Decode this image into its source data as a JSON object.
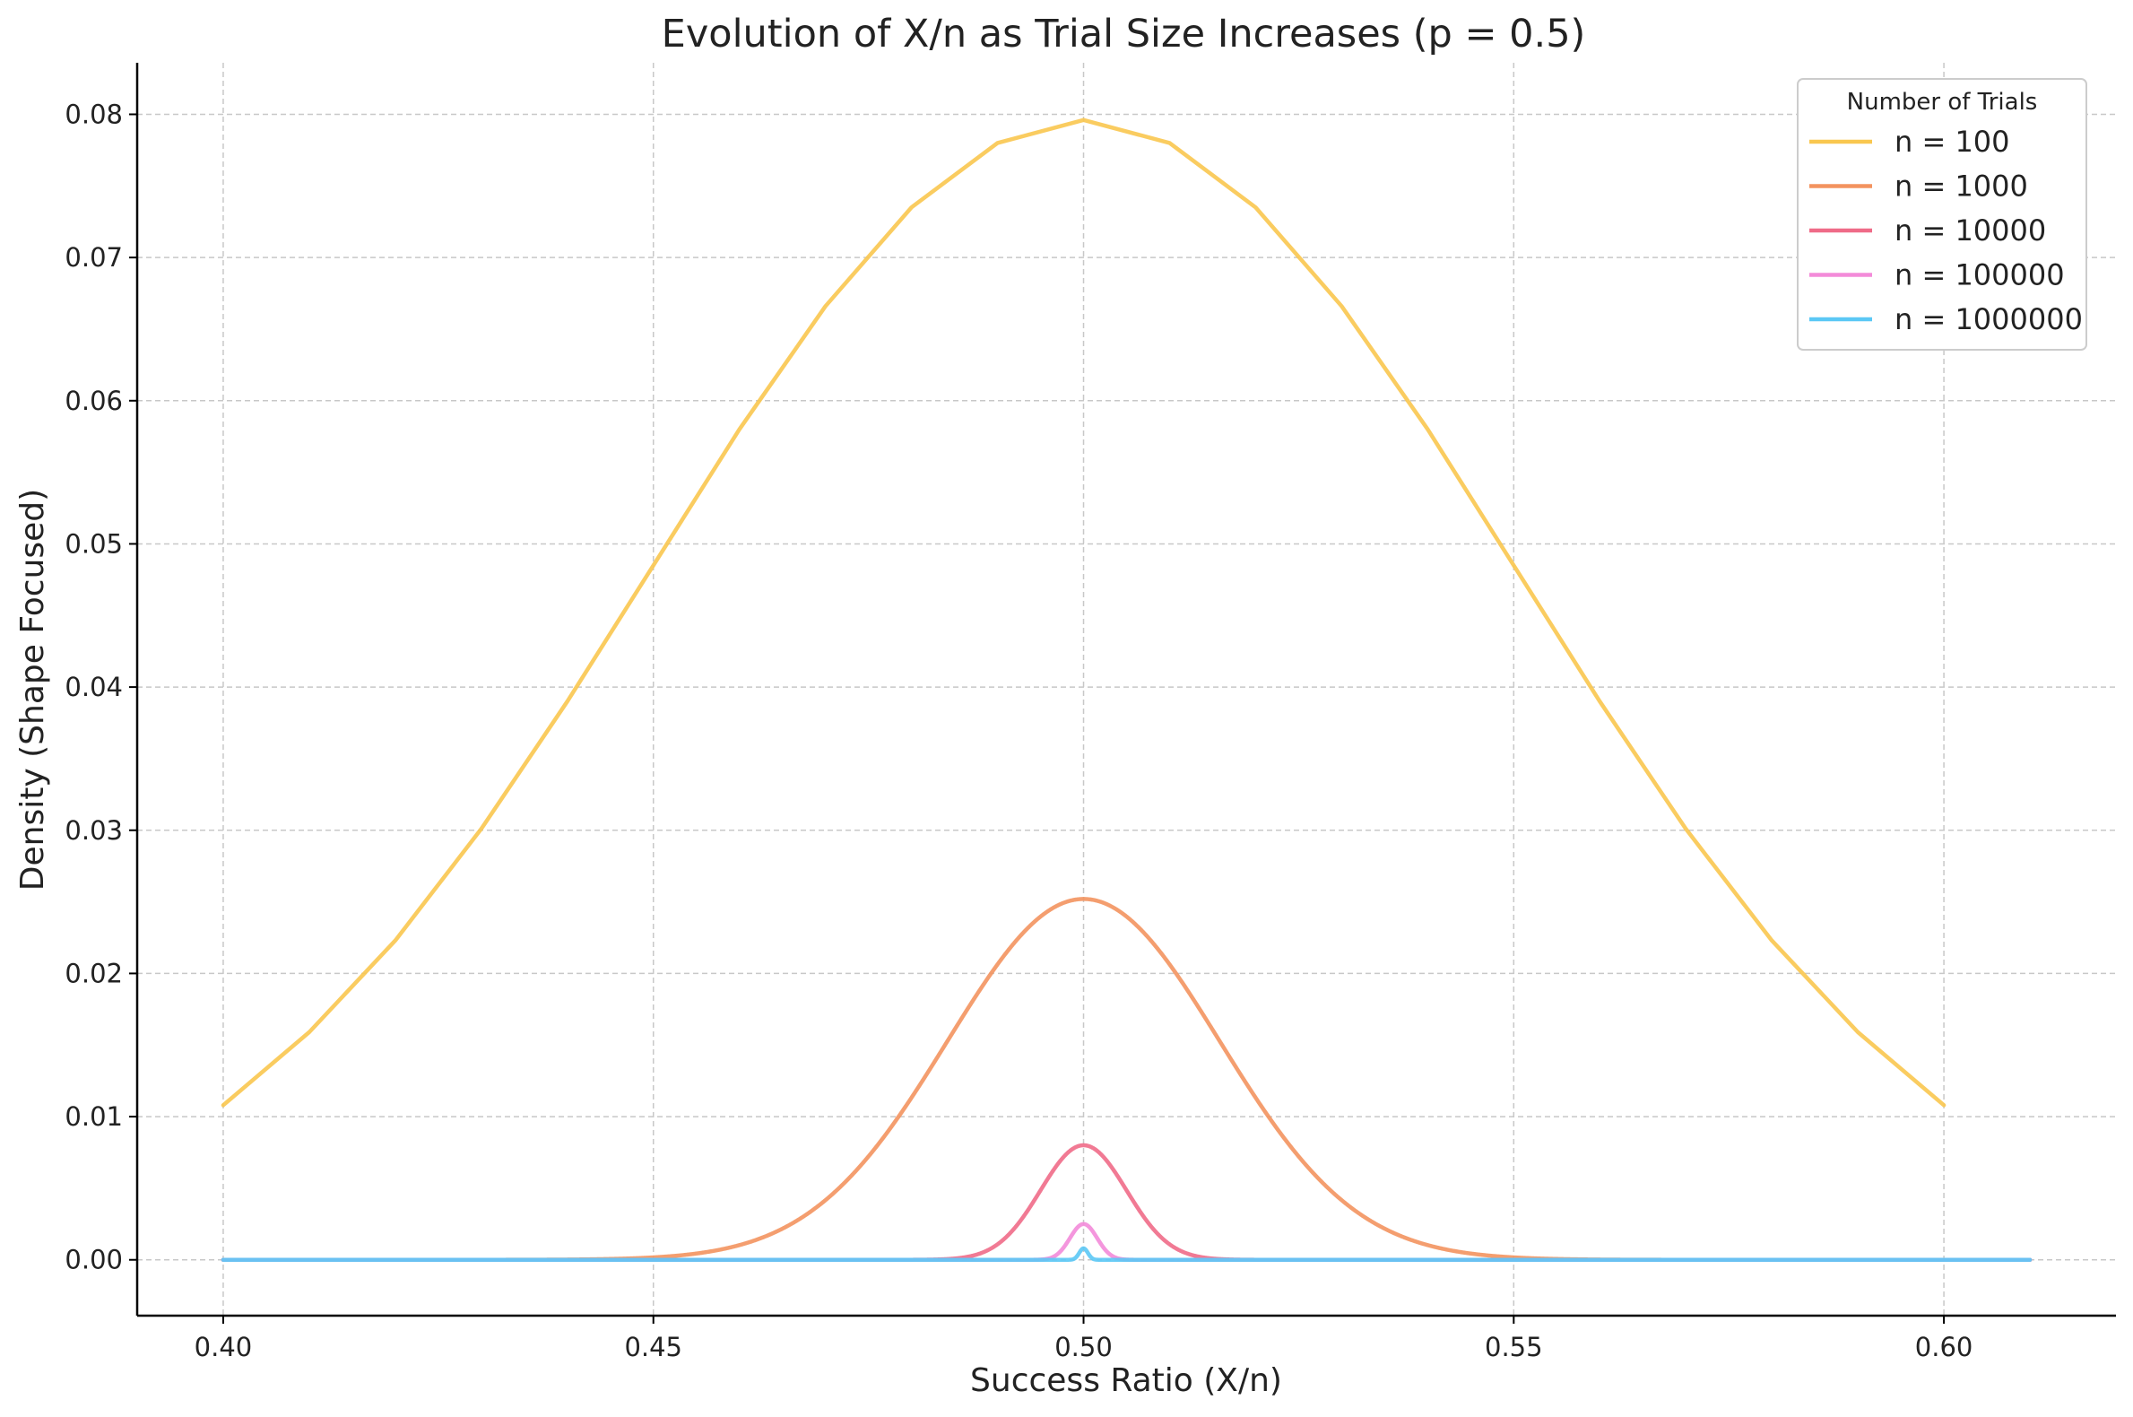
{
  "chart_data": {
    "type": "line",
    "title": "Evolution of X/n as Trial Size Increases (p = 0.5)",
    "xlabel": "Success Ratio (X/n)",
    "ylabel": "Density (Shape Focused)",
    "xlim": [
      0.39,
      0.62
    ],
    "ylim": [
      -0.0039,
      0.0836
    ],
    "xticks": [
      0.4,
      0.45,
      0.5,
      0.55,
      0.6
    ],
    "xtick_labels": [
      "0.40",
      "0.45",
      "0.50",
      "0.55",
      "0.60"
    ],
    "yticks": [
      0.0,
      0.01,
      0.02,
      0.03,
      0.04,
      0.05,
      0.06,
      0.07,
      0.08
    ],
    "ytick_labels": [
      "0.00",
      "0.01",
      "0.02",
      "0.03",
      "0.04",
      "0.05",
      "0.06",
      "0.07",
      "0.08"
    ],
    "grid": true,
    "legend": {
      "title": "Number of Trials",
      "placement": "upper right"
    },
    "series": [
      {
        "name": "n = 100",
        "color": "#f9c74f",
        "n": 100,
        "x": [
          0.4,
          0.41,
          0.42,
          0.43,
          0.44,
          0.45,
          0.46,
          0.47,
          0.48,
          0.49,
          0.5,
          0.51,
          0.52,
          0.53,
          0.54,
          0.55,
          0.56,
          0.57,
          0.58,
          0.59,
          0.6
        ],
        "y": [
          0.0108,
          0.0159,
          0.0223,
          0.0301,
          0.039,
          0.0485,
          0.058,
          0.0666,
          0.0735,
          0.078,
          0.0796,
          0.078,
          0.0735,
          0.0666,
          0.058,
          0.0485,
          0.039,
          0.0301,
          0.0223,
          0.0159,
          0.0108
        ]
      },
      {
        "name": "n = 1000",
        "color": "#f3935f",
        "n": 1000,
        "x_range": [
          0.4,
          0.61
        ],
        "peak": 0.0252
      },
      {
        "name": "n = 10000",
        "color": "#ef6b88",
        "n": 10000,
        "x_range": [
          0.4,
          0.61
        ],
        "peak": 0.008
      },
      {
        "name": "n = 100000",
        "color": "#f38bd9",
        "n": 100000,
        "x_range": [
          0.4,
          0.61
        ],
        "peak": 0.0025
      },
      {
        "name": "n = 1000000",
        "color": "#5bc8f5",
        "n": 1000000,
        "x_range": [
          0.4,
          0.61
        ],
        "peak": 0.0008
      }
    ]
  }
}
